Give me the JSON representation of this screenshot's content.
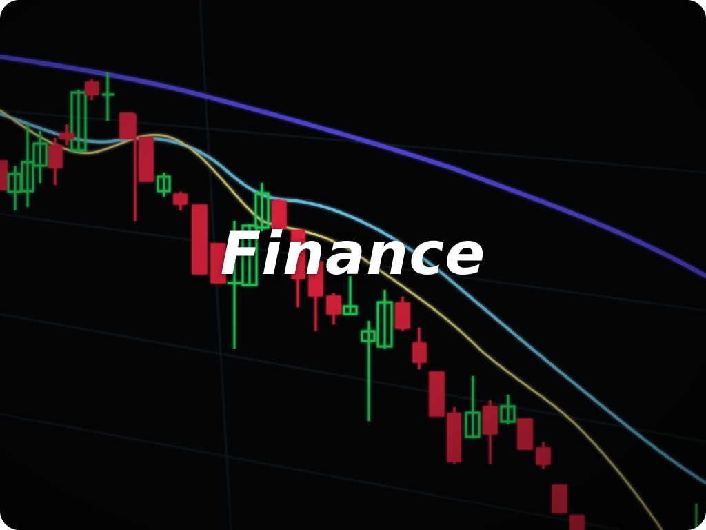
{
  "hero": {
    "title": "Finance"
  },
  "colors": {
    "background": "#030405",
    "candle_up": "#27d05a",
    "candle_down": "#e0223a",
    "ma_long": "#5a4cf0",
    "ma_mid": "#6fc9e8",
    "ma_short": "#d9d27a",
    "title": "#ffffff"
  }
}
